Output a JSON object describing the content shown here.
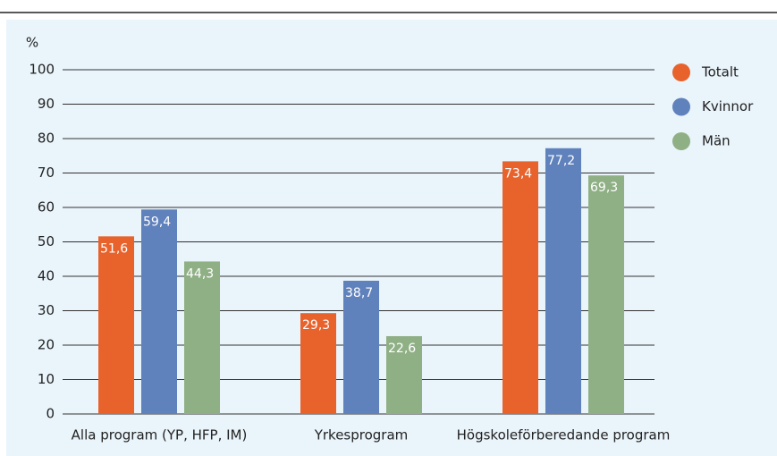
{
  "chart_data": {
    "type": "bar",
    "y_label": "%",
    "categories": [
      "Alla program (YP, HFP, IM)",
      "Yrkesprogram",
      "Högskoleförberedande program"
    ],
    "series": [
      {
        "name": "Totalt",
        "color": "#e8622c",
        "values": [
          51.6,
          29.3,
          73.4
        ],
        "value_labels": [
          "51,6",
          "29,3",
          "73,4"
        ]
      },
      {
        "name": "Kvinnor",
        "color": "#5f81bc",
        "values": [
          59.4,
          38.7,
          77.2
        ],
        "value_labels": [
          "59,4",
          "38,7",
          "77,2"
        ]
      },
      {
        "name": "Män",
        "color": "#8fb085",
        "values": [
          44.3,
          22.6,
          69.3
        ],
        "value_labels": [
          "44,3",
          "22,6",
          "69,3"
        ]
      }
    ],
    "ylim": [
      0,
      100
    ],
    "yticks": [
      0,
      10,
      20,
      30,
      40,
      50,
      60,
      70,
      80,
      90,
      100
    ],
    "grid": true,
    "legend": "right"
  }
}
